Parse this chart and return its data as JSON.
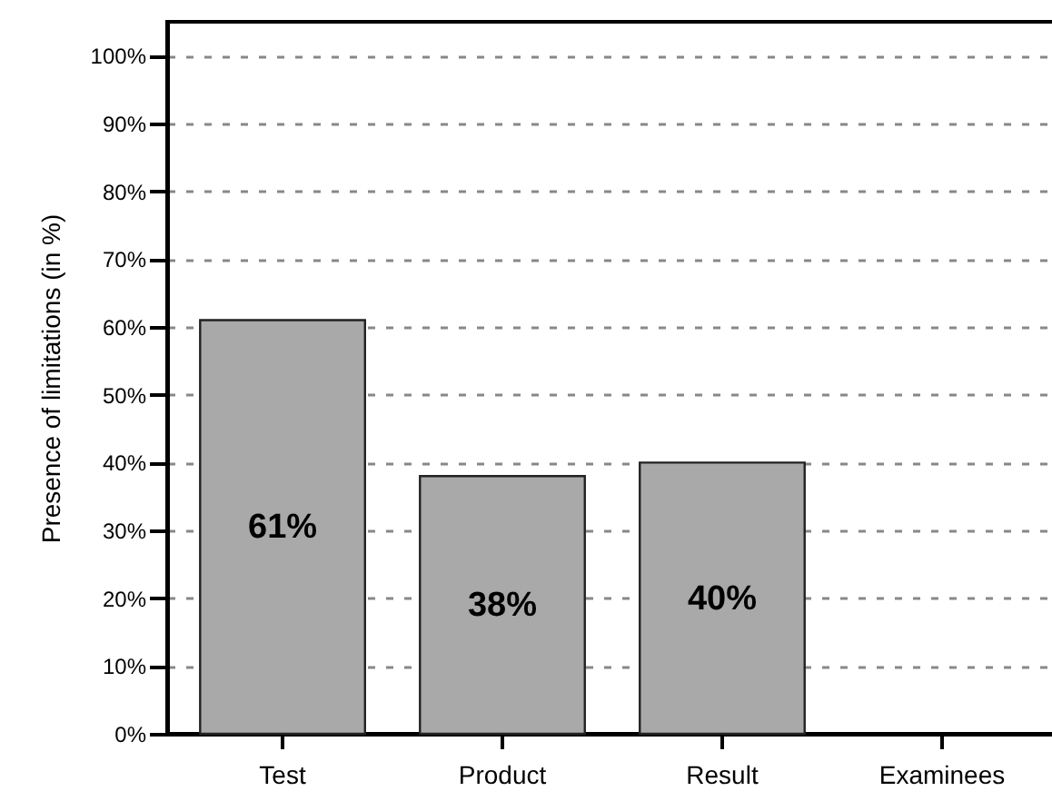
{
  "chart_data": {
    "type": "bar",
    "ylabel": "Presence of limitations (in %)",
    "categories": [
      "Test",
      "Product",
      "Result",
      "Examinees"
    ],
    "values": [
      61,
      38,
      40,
      null
    ],
    "value_labels": [
      "61%",
      "38%",
      "40%",
      null
    ],
    "color": "#a9a9a9",
    "ylim": [
      0,
      105
    ],
    "yticks": [
      {
        "value": 0,
        "label": "0%"
      },
      {
        "value": 10,
        "label": "10%"
      },
      {
        "value": 20,
        "label": "20%"
      },
      {
        "value": 30,
        "label": "30%"
      },
      {
        "value": 40,
        "label": "40%"
      },
      {
        "value": 50,
        "label": "50%"
      },
      {
        "value": 60,
        "label": "60%"
      },
      {
        "value": 70,
        "label": "70%"
      },
      {
        "value": 80,
        "label": "80%"
      },
      {
        "value": 90,
        "label": "90%"
      },
      {
        "value": 100,
        "label": "100%"
      }
    ],
    "grid": "y"
  }
}
